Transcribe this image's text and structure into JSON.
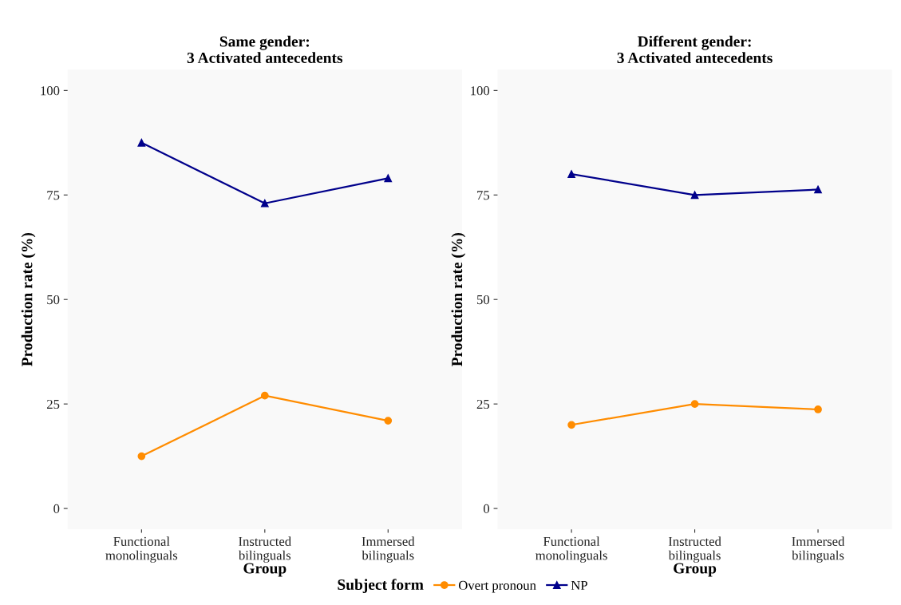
{
  "chart_data": [
    {
      "type": "line",
      "title": "Same gender:\n3 Activated antecedents",
      "xlabel": "Group",
      "ylabel": "Production rate (%)",
      "categories": [
        "Functional\nmonolinguals",
        "Instructed\nbilinguals",
        "Immersed\nbilinguals"
      ],
      "series": [
        {
          "name": "Overt pronoun",
          "color": "#ff8c00",
          "marker": "circle",
          "values": [
            12.5,
            27,
            21
          ]
        },
        {
          "name": "NP",
          "color": "#00008b",
          "marker": "triangle",
          "values": [
            87.5,
            73,
            79
          ]
        }
      ],
      "ylim": [
        -5,
        105
      ],
      "yticks": [
        0,
        25,
        50,
        75,
        100
      ],
      "grid": false,
      "legend": "bottom",
      "legend_title": "Subject form",
      "line_style": "solid"
    },
    {
      "type": "line",
      "title": "Different gender:\n3 Activated antecedents",
      "xlabel": "Group",
      "ylabel": "Production rate (%)",
      "categories": [
        "Functional\nmonolinguals",
        "Instructed\nbilinguals",
        "Immersed\nbilinguals"
      ],
      "series": [
        {
          "name": "Overt pronoun",
          "color": "#ff8c00",
          "marker": "circle",
          "values": [
            20,
            25,
            23.7
          ]
        },
        {
          "name": "NP",
          "color": "#00008b",
          "marker": "triangle",
          "values": [
            80,
            75,
            76.3
          ]
        }
      ],
      "ylim": [
        -5,
        105
      ],
      "yticks": [
        0,
        25,
        50,
        75,
        100
      ],
      "grid": false,
      "line_style": "solid"
    }
  ]
}
